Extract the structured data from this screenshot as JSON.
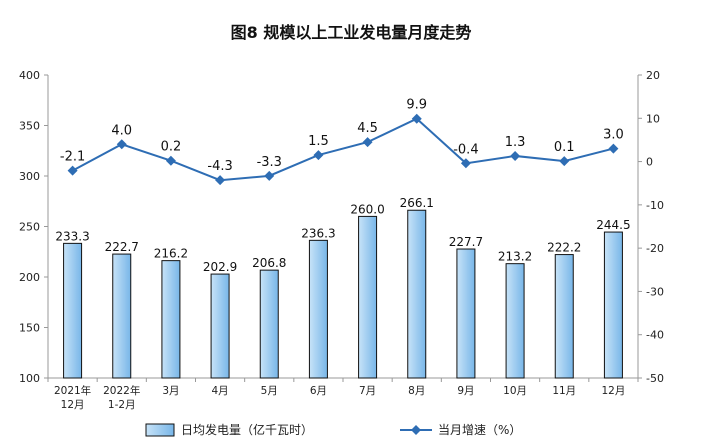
{
  "chart_data": {
    "type": "bar+line",
    "title": "图8  规模以上工业发电量月度走势",
    "categories": [
      [
        "2021年",
        "12月"
      ],
      [
        "2022年",
        "1-2月"
      ],
      [
        "3月"
      ],
      [
        "4月"
      ],
      [
        "5月"
      ],
      [
        "6月"
      ],
      [
        "7月"
      ],
      [
        "8月"
      ],
      [
        "9月"
      ],
      [
        "10月"
      ],
      [
        "11月"
      ],
      [
        "12月"
      ]
    ],
    "series": [
      {
        "name": "日均发电量（亿千瓦时）",
        "type": "bar",
        "axis": "left",
        "values": [
          233.3,
          222.7,
          216.2,
          202.9,
          206.8,
          236.3,
          260.0,
          266.1,
          227.7,
          213.2,
          222.2,
          244.5
        ],
        "labels": [
          "233.3",
          "222.7",
          "216.2",
          "202.9",
          "206.8",
          "236.3",
          "260.0",
          "266.1",
          "227.7",
          "213.2",
          "222.2",
          "244.5"
        ]
      },
      {
        "name": "当月增速（%）",
        "type": "line",
        "axis": "right",
        "values": [
          -2.1,
          4.0,
          0.2,
          -4.3,
          -3.3,
          1.5,
          4.5,
          9.9,
          -0.4,
          1.3,
          0.1,
          3.0
        ],
        "labels": [
          "-2.1",
          "4.0",
          "0.2",
          "-4.3",
          "-3.3",
          "1.5",
          "4.5",
          "9.9",
          "-0.4",
          "1.3",
          "0.1",
          "3.0"
        ]
      }
    ],
    "left_axis": {
      "ylim": [
        100,
        400
      ],
      "ticks": [
        "100",
        "150",
        "200",
        "250",
        "300",
        "350",
        "400"
      ]
    },
    "right_axis": {
      "ylim": [
        -50,
        20
      ],
      "ticks": [
        "-50",
        "-40",
        "-30",
        "-20",
        "-10",
        "0",
        "10",
        "20"
      ]
    },
    "legend_position": "bottom",
    "grid": false,
    "colors": {
      "bar_fill_light": "#c7e3f8",
      "bar_fill_dark": "#78b6e8",
      "bar_stroke": "#111111",
      "line": "#2e6db4",
      "axis": "#999999"
    }
  }
}
